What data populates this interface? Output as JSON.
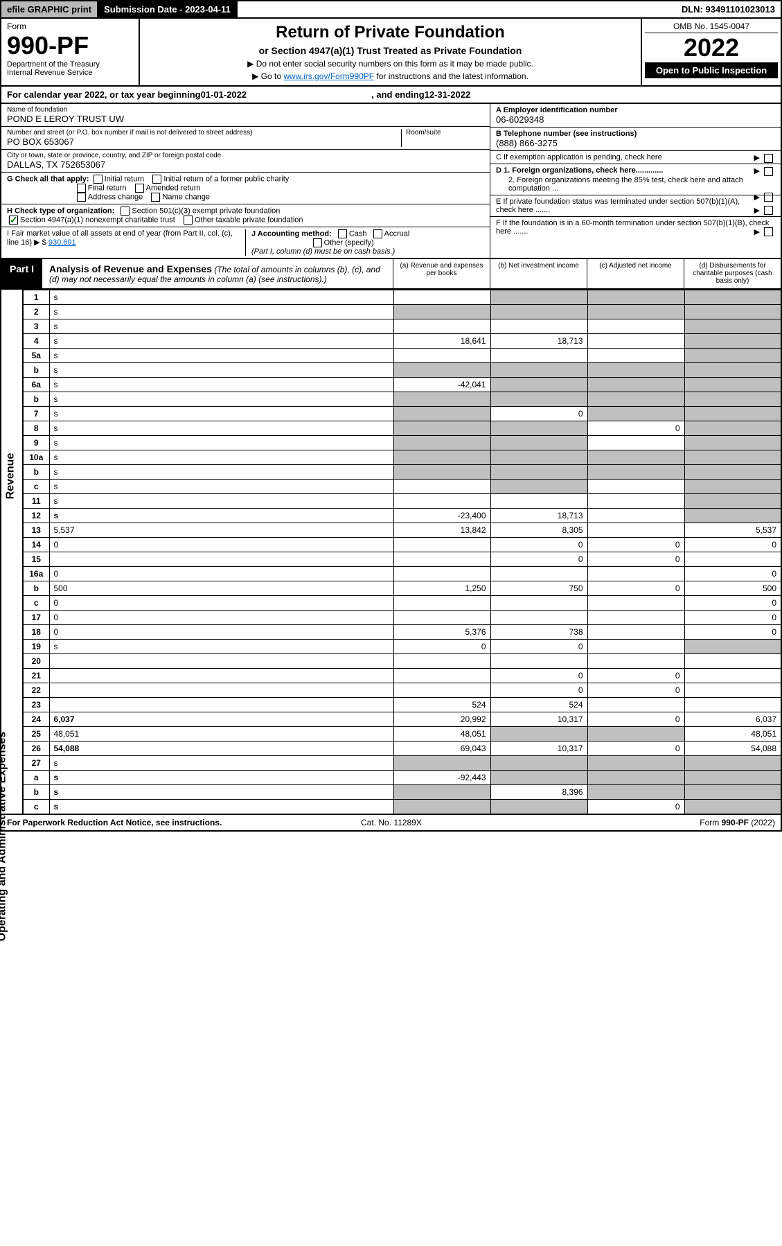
{
  "topbar": {
    "efile": "efile GRAPHIC print",
    "subdate_label": "Submission Date - 2023-04-11",
    "dln": "DLN: 93491101023013"
  },
  "header": {
    "form_label": "Form",
    "form_num": "990-PF",
    "dept": "Department of the Treasury",
    "irs": "Internal Revenue Service",
    "title": "Return of Private Foundation",
    "subtitle": "or Section 4947(a)(1) Trust Treated as Private Foundation",
    "note1": "▶ Do not enter social security numbers on this form as it may be made public.",
    "note2_prefix": "▶ Go to ",
    "note2_link": "www.irs.gov/Form990PF",
    "note2_suffix": " for instructions and the latest information.",
    "omb": "OMB No. 1545-0047",
    "year": "2022",
    "open": "Open to Public Inspection"
  },
  "calendar": {
    "prefix": "For calendar year 2022, or tax year beginning ",
    "begin": "01-01-2022",
    "mid": " , and ending ",
    "end": "12-31-2022"
  },
  "ident": {
    "name_label": "Name of foundation",
    "name": "POND E LEROY TRUST UW",
    "addr_label": "Number and street (or P.O. box number if mail is not delivered to street address)",
    "room_label": "Room/suite",
    "addr": "PO BOX 653067",
    "city_label": "City or town, state or province, country, and ZIP or foreign postal code",
    "city": "DALLAS, TX  752653067",
    "ein_label": "A Employer identification number",
    "ein": "06-6029348",
    "phone_label": "B Telephone number (see instructions)",
    "phone": "(888) 866-3275",
    "c_label": "C If exemption application is pending, check here",
    "d1": "D 1. Foreign organizations, check here.............",
    "d2": "2. Foreign organizations meeting the 85% test, check here and attach computation ...",
    "e_label": "E If private foundation status was terminated under section 507(b)(1)(A), check here .......",
    "f_label": "F If the foundation is in a 60-month termination under section 507(b)(1)(B), check here .......",
    "g_label": "G Check all that apply:",
    "g_opts": [
      "Initial return",
      "Initial return of a former public charity",
      "Final return",
      "Amended return",
      "Address change",
      "Name change"
    ],
    "h_label": "H Check type of organization:",
    "h_opt1": "Section 501(c)(3) exempt private foundation",
    "h_opt2": "Section 4947(a)(1) nonexempt charitable trust",
    "h_opt3": "Other taxable private foundation",
    "i_label": "I Fair market value of all assets at end of year (from Part II, col. (c), line 16) ▶ $",
    "i_val": "930,691",
    "j_label": "J Accounting method:",
    "j_opts": [
      "Cash",
      "Accrual",
      "Other (specify)"
    ],
    "j_note": "(Part I, column (d) must be on cash basis.)"
  },
  "part1": {
    "badge": "Part I",
    "title": "Analysis of Revenue and Expenses",
    "title_note": " (The total of amounts in columns (b), (c), and (d) may not necessarily equal the amounts in column (a) (see instructions).)",
    "col_a": "(a) Revenue and expenses per books",
    "col_b": "(b) Net investment income",
    "col_c": "(c) Adjusted net income",
    "col_d": "(d) Disbursements for charitable purposes (cash basis only)"
  },
  "sidelabels": {
    "revenue": "Revenue",
    "expenses": "Operating and Administrative Expenses"
  },
  "rows": [
    {
      "n": "1",
      "d": "s",
      "a": "",
      "b": "s",
      "c": "s"
    },
    {
      "n": "2",
      "d": "s",
      "a": "s",
      "b": "s",
      "c": "s",
      "checked": true
    },
    {
      "n": "3",
      "d": "s",
      "a": "",
      "b": "",
      "c": ""
    },
    {
      "n": "4",
      "d": "s",
      "a": "18,641",
      "b": "18,713",
      "c": ""
    },
    {
      "n": "5a",
      "d": "s",
      "a": "",
      "b": "",
      "c": ""
    },
    {
      "n": "b",
      "d": "s",
      "a": "s",
      "b": "s",
      "c": "s"
    },
    {
      "n": "6a",
      "d": "s",
      "a": "-42,041",
      "b": "s",
      "c": "s"
    },
    {
      "n": "b",
      "d": "s",
      "a": "s",
      "b": "s",
      "c": "s"
    },
    {
      "n": "7",
      "d": "s",
      "a": "s",
      "b": "0",
      "c": "s"
    },
    {
      "n": "8",
      "d": "s",
      "a": "s",
      "b": "s",
      "c": "0"
    },
    {
      "n": "9",
      "d": "s",
      "a": "s",
      "b": "s",
      "c": ""
    },
    {
      "n": "10a",
      "d": "s",
      "a": "s",
      "b": "s",
      "c": "s"
    },
    {
      "n": "b",
      "d": "s",
      "a": "s",
      "b": "s",
      "c": "s"
    },
    {
      "n": "c",
      "d": "s",
      "a": "",
      "b": "s",
      "c": ""
    },
    {
      "n": "11",
      "d": "s",
      "a": "",
      "b": "",
      "c": ""
    },
    {
      "n": "12",
      "d": "s",
      "a": "-23,400",
      "b": "18,713",
      "c": "",
      "bold": true
    },
    {
      "n": "13",
      "d": "5,537",
      "a": "13,842",
      "b": "8,305",
      "c": ""
    },
    {
      "n": "14",
      "d": "0",
      "a": "",
      "b": "0",
      "c": "0"
    },
    {
      "n": "15",
      "d": "",
      "a": "",
      "b": "0",
      "c": "0"
    },
    {
      "n": "16a",
      "d": "0",
      "a": "",
      "b": "",
      "c": ""
    },
    {
      "n": "b",
      "d": "500",
      "a": "1,250",
      "b": "750",
      "c": "0"
    },
    {
      "n": "c",
      "d": "0",
      "a": "",
      "b": "",
      "c": ""
    },
    {
      "n": "17",
      "d": "0",
      "a": "",
      "b": "",
      "c": ""
    },
    {
      "n": "18",
      "d": "0",
      "a": "5,376",
      "b": "738",
      "c": ""
    },
    {
      "n": "19",
      "d": "s",
      "a": "0",
      "b": "0",
      "c": ""
    },
    {
      "n": "20",
      "d": "",
      "a": "",
      "b": "",
      "c": ""
    },
    {
      "n": "21",
      "d": "",
      "a": "",
      "b": "0",
      "c": "0"
    },
    {
      "n": "22",
      "d": "",
      "a": "",
      "b": "0",
      "c": "0"
    },
    {
      "n": "23",
      "d": "",
      "a": "524",
      "b": "524",
      "c": ""
    },
    {
      "n": "24",
      "d": "6,037",
      "a": "20,992",
      "b": "10,317",
      "c": "0",
      "bold": true
    },
    {
      "n": "25",
      "d": "48,051",
      "a": "48,051",
      "b": "s",
      "c": "s"
    },
    {
      "n": "26",
      "d": "54,088",
      "a": "69,043",
      "b": "10,317",
      "c": "0",
      "bold": true
    },
    {
      "n": "27",
      "d": "s",
      "a": "s",
      "b": "s",
      "c": "s"
    },
    {
      "n": "a",
      "d": "s",
      "a": "-92,443",
      "b": "s",
      "c": "s",
      "bold": true
    },
    {
      "n": "b",
      "d": "s",
      "a": "s",
      "b": "8,396",
      "c": "s",
      "bold": true
    },
    {
      "n": "c",
      "d": "s",
      "a": "s",
      "b": "s",
      "c": "0",
      "bold": true
    }
  ],
  "footer": {
    "left": "For Paperwork Reduction Act Notice, see instructions.",
    "mid": "Cat. No. 11289X",
    "right": "Form 990-PF (2022)"
  },
  "colors": {
    "shade": "#c0c0c0",
    "link": "#0066cc",
    "check": "#0a7a0a"
  }
}
